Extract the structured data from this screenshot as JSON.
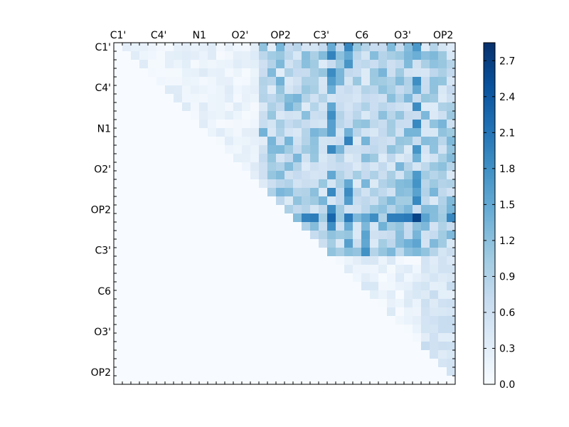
{
  "chart_data": {
    "type": "heatmap",
    "title": "",
    "xlabel": "",
    "ylabel": "",
    "colormap": "Blues",
    "color_range": [
      0,
      2.85
    ],
    "x_tick_labels": [
      "C1'",
      "C4'",
      "N1",
      "O2'",
      "OP2",
      "C3'",
      "C6",
      "O3'",
      "OP2"
    ],
    "y_tick_labels": [
      "C1'",
      "C4'",
      "N1",
      "O2'",
      "OP2",
      "C3'",
      "C6",
      "O3'",
      "OP2"
    ],
    "colorbar_ticks": [
      "0.0",
      "0.3",
      "0.6",
      "0.9",
      "1.2",
      "1.5",
      "1.8",
      "2.1",
      "2.4",
      "2.7"
    ],
    "grid_size": 40,
    "matrix_structure": "upper-triangular",
    "notable_values": {
      "max_cell": 2.8,
      "strongest_row_label_region": "OP2",
      "strongest_row_mean_right_half": 1.6,
      "typical_upper_left_block": 0.3,
      "typical_upper_right_block": 0.8,
      "lower_triangle": 0.0
    }
  }
}
